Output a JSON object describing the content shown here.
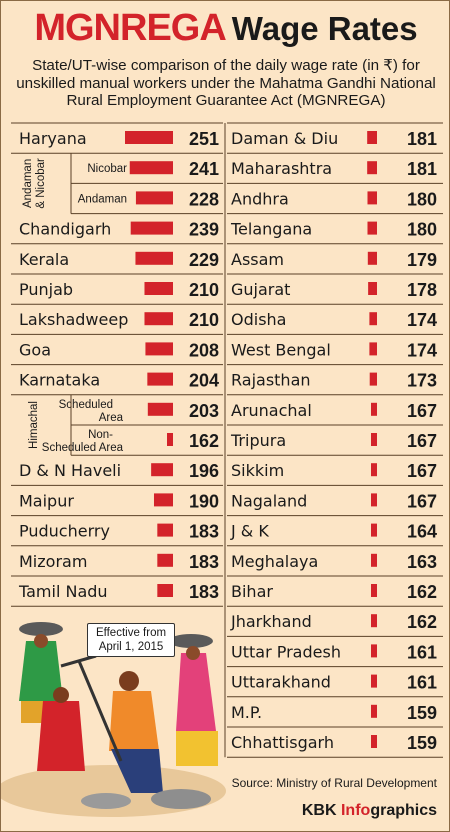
{
  "title": {
    "part1": "MGNREGA",
    "part2": "Wage Rates"
  },
  "subtitle": "State/UT-wise comparison of the daily wage rate (in ₹) for unskilled manual workers under the Mahatma Gandhi National Rural Employment Guarantee Act (MGNREGA)",
  "callout": "Effective from April 1, 2015",
  "source": "Source: Ministry of Rural Development",
  "credit": {
    "prefix": "KBK ",
    "accent": "Info",
    "suffix": "graphics"
  },
  "colors": {
    "background": "#fce5c6",
    "bar": "#d3232a",
    "title_red": "#d3232a"
  },
  "chart_data": {
    "type": "bar",
    "orientation": "horizontal",
    "unit": "₹ per day",
    "columns": [
      [
        {
          "label": "Haryana",
          "value": 251
        },
        {
          "group": "Andaman & Nicobar",
          "label": "Nicobar",
          "value": 241
        },
        {
          "group": "Andaman & Nicobar",
          "label": "Andaman",
          "value": 228
        },
        {
          "label": "Chandigarh",
          "value": 239
        },
        {
          "label": "Kerala",
          "value": 229
        },
        {
          "label": "Punjab",
          "value": 210
        },
        {
          "label": "Lakshadweep",
          "value": 210
        },
        {
          "label": "Goa",
          "value": 208
        },
        {
          "label": "Karnataka",
          "value": 204
        },
        {
          "group": "Himachal",
          "label": "Scheduled Area",
          "value": 203
        },
        {
          "group": "Himachal",
          "label": "Non-Scheduled Area",
          "value": 162
        },
        {
          "label": "D & N Haveli",
          "value": 196
        },
        {
          "label": "Maipur",
          "value": 190
        },
        {
          "label": "Puducherry",
          "value": 183
        },
        {
          "label": "Mizoram",
          "value": 183
        },
        {
          "label": "Tamil Nadu",
          "value": 183
        }
      ],
      [
        {
          "label": "Daman & Diu",
          "value": 181
        },
        {
          "label": "Maharashtra",
          "value": 181
        },
        {
          "label": "Andhra",
          "value": 180
        },
        {
          "label": "Telangana",
          "value": 180
        },
        {
          "label": "Assam",
          "value": 179
        },
        {
          "label": "Gujarat",
          "value": 178
        },
        {
          "label": "Odisha",
          "value": 174
        },
        {
          "label": "West Bengal",
          "value": 174
        },
        {
          "label": "Rajasthan",
          "value": 173
        },
        {
          "label": "Arunachal",
          "value": 167
        },
        {
          "label": "Tripura",
          "value": 167
        },
        {
          "label": "Sikkim",
          "value": 167
        },
        {
          "label": "Nagaland",
          "value": 167
        },
        {
          "label": "J & K",
          "value": 164
        },
        {
          "label": "Meghalaya",
          "value": 163
        },
        {
          "label": "Bihar",
          "value": 162
        },
        {
          "label": "Jharkhand",
          "value": 162
        },
        {
          "label": "Uttar Pradesh",
          "value": 161
        },
        {
          "label": "Uttarakhand",
          "value": 161
        },
        {
          "label": "M.P.",
          "value": 159
        },
        {
          "label": "Chhattisgarh",
          "value": 159
        }
      ]
    ]
  }
}
